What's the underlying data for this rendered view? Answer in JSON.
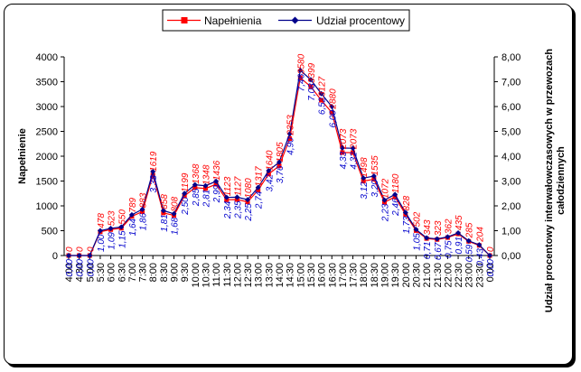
{
  "chart_data": {
    "type": "line",
    "x": [
      "4:00",
      "4:30",
      "5:00",
      "5:30",
      "6:00",
      "6:30",
      "7:00",
      "7:30",
      "8:00",
      "8:30",
      "9:00",
      "9:30",
      "10:00",
      "10:30",
      "11:00",
      "11:30",
      "12:00",
      "12:30",
      "13:00",
      "13:30",
      "14:00",
      "14:30",
      "15:00",
      "15:30",
      "16:00",
      "16:30",
      "17:00",
      "17:30",
      "18:00",
      "18:30",
      "19:00",
      "19:30",
      "20:00",
      "20:30",
      "21:00",
      "21:30",
      "22:00",
      "22:30",
      "23:00",
      "23:30",
      "0:00"
    ],
    "series": [
      {
        "name": "Napełnienia",
        "axis": "left",
        "color": "#ff0000",
        "values": [
          0,
          0,
          0,
          478,
          523,
          550,
          789,
          883,
          1619,
          858,
          808,
          1199,
          1368,
          1348,
          1436,
          1123,
          1127,
          1080,
          1317,
          1640,
          1805,
          2353,
          3580,
          3399,
          3127,
          2880,
          2073,
          2073,
          1498,
          1535,
          1072,
          1180,
          828,
          502,
          343,
          323,
          362,
          435,
          285,
          204,
          0
        ],
        "labels": [
          "0",
          "0",
          "0",
          "478",
          "523",
          "550",
          "789",
          "883",
          "1619",
          "858",
          "808",
          "1199",
          "1368",
          "1348",
          "1436",
          "1123",
          "1127",
          "1080",
          "1317",
          "1640",
          "1805",
          "2353",
          "3580",
          "3399",
          "3127",
          "2880",
          "2073",
          "2073",
          "1498",
          "1535",
          "1072",
          "1180",
          "828",
          "502",
          "343",
          "323",
          "362",
          "435",
          "285",
          "204",
          "0"
        ]
      },
      {
        "name": "Udział procentowy",
        "axis": "right",
        "color": "#00008b",
        "values": [
          0.0,
          0.0,
          0.0,
          1.0,
          1.09,
          1.15,
          1.64,
          1.86,
          3.38,
          1.81,
          1.68,
          2.5,
          2.85,
          2.81,
          2.99,
          2.34,
          2.35,
          2.25,
          2.74,
          3.42,
          3.76,
          4.9,
          7.46,
          7.08,
          6.52,
          6.0,
          4.33,
          4.32,
          3.12,
          3.2,
          2.23,
          2.46,
          1.73,
          1.05,
          0.71,
          0.67,
          0.75,
          0.91,
          0.59,
          0.43,
          0.0
        ],
        "labels": [
          "0,00",
          "0,00",
          "0,00",
          "1,00",
          "1,09",
          "1,15",
          "1,64",
          "1,86",
          "3,38",
          "1,81",
          "1,68",
          "2,50",
          "2,85",
          "2,81",
          "2,99",
          "2,34",
          "2,35",
          "2,25",
          "2,74",
          "3,42",
          "3,76",
          "4,90",
          "7,46",
          "7,08",
          "6,52",
          "6,00",
          "4,33",
          "4,32",
          "3,12",
          "3,20",
          "2,23",
          "2,46",
          "1,73",
          "1,05",
          "0,71",
          "0,67",
          "0,75",
          "0,91",
          "0,59",
          "0,43",
          "0,00"
        ]
      }
    ],
    "ylabel": "Napełnienie",
    "y2label": "Udział procentowy interwałowczasowych w przewozach całodziennych",
    "ylim": [
      0,
      4000
    ],
    "y2lim": [
      0,
      8
    ],
    "yticks": [
      "0",
      "500",
      "1000",
      "1500",
      "2000",
      "2500",
      "3000",
      "3500",
      "4000"
    ],
    "y2ticks": [
      "0,00",
      "1,00",
      "2,00",
      "3,00",
      "4,00",
      "5,00",
      "6,00",
      "7,00",
      "8,00"
    ],
    "legend": "top",
    "grid": false
  }
}
